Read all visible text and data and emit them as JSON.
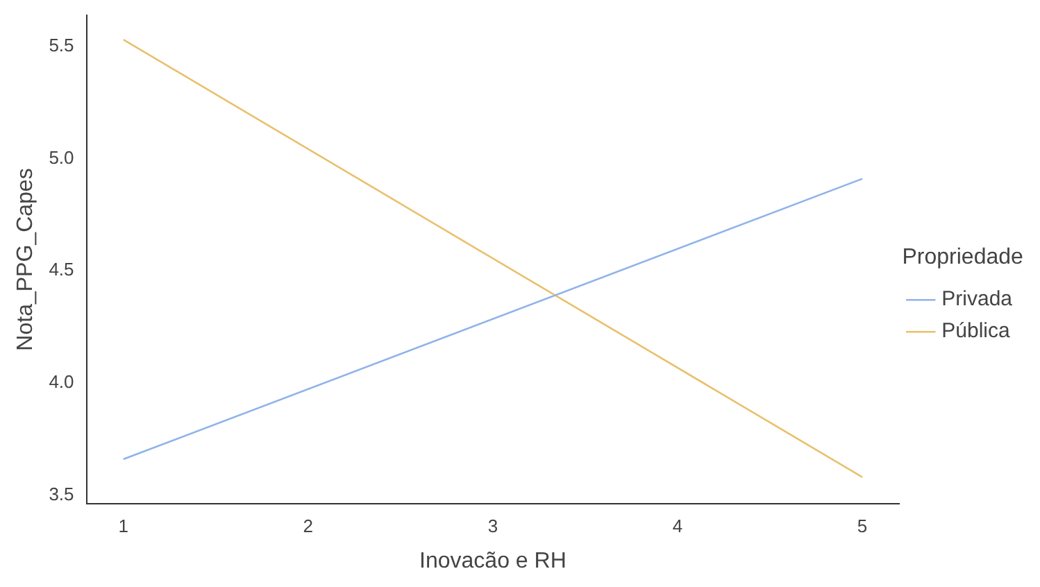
{
  "chart_data": {
    "type": "line",
    "xlabel": "Inovacão e RH",
    "ylabel": "Nota_PPG_Capes",
    "legend_title": "Propriedade",
    "x": [
      1,
      5
    ],
    "series": [
      {
        "name": "Privada",
        "color": "#8fb3ea",
        "values": [
          3.66,
          4.91
        ]
      },
      {
        "name": "Pública",
        "color": "#e9c06c",
        "values": [
          5.53,
          3.58
        ]
      }
    ],
    "xlim": [
      0.8,
      5.2
    ],
    "xticks": [
      1,
      2,
      3,
      4,
      5
    ],
    "ylim": [
      3.46,
      5.64
    ],
    "yticks": [
      3.5,
      {
        "value": 4,
        "label": "4.0"
      },
      4.5,
      {
        "value": 5,
        "label": "5.0"
      },
      5.5
    ],
    "grid": false,
    "legend": "right",
    "marker": "none",
    "line_style": "solid"
  }
}
